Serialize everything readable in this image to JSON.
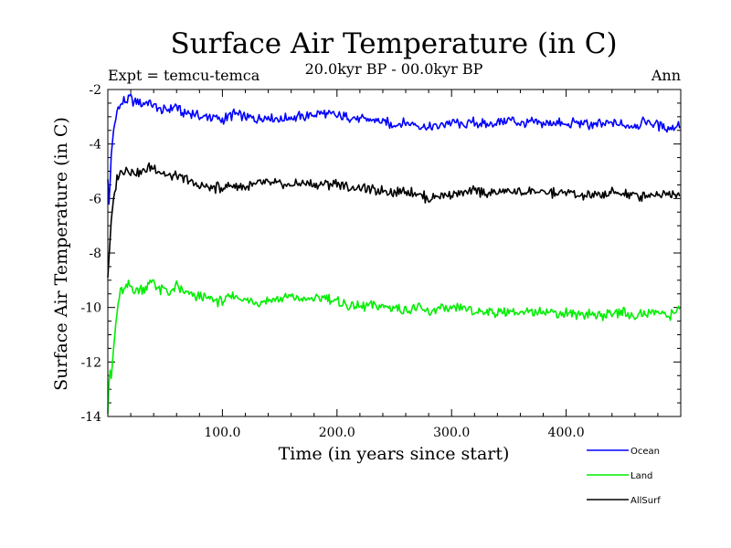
{
  "chart_data": {
    "type": "line",
    "title": "Surface Air Temperature (in C)",
    "subtitle": "20.0kyr BP - 00.0kyr BP",
    "experiment_label": "Expt = temcu-temca",
    "period_label": "Ann",
    "xlabel": "Time (in years since start)",
    "ylabel": "Surface Air Temperature (in C)",
    "xlim": [
      0,
      500
    ],
    "ylim": [
      -14,
      -2
    ],
    "x_ticks": [
      {
        "value": 100,
        "label": "100.0"
      },
      {
        "value": 200,
        "label": "200.0"
      },
      {
        "value": 300,
        "label": "300.0"
      },
      {
        "value": 400,
        "label": "400.0"
      }
    ],
    "y_ticks": [
      {
        "value": -2,
        "label": "-2"
      },
      {
        "value": -4,
        "label": "-4"
      },
      {
        "value": -6,
        "label": "-6"
      },
      {
        "value": -8,
        "label": "-8"
      },
      {
        "value": -10,
        "label": "-10"
      },
      {
        "value": -12,
        "label": "-12"
      },
      {
        "value": -14,
        "label": "-14"
      }
    ],
    "legend_position": "bottom-right",
    "series": [
      {
        "name": "Ocean",
        "color": "#0000ff",
        "x": [
          0,
          1,
          2,
          3,
          5,
          8,
          10,
          12,
          15,
          18,
          20,
          22,
          25,
          28,
          30,
          35,
          40,
          45,
          50,
          55,
          60,
          65,
          70,
          75,
          80,
          90,
          100,
          110,
          120,
          130,
          140,
          150,
          160,
          170,
          180,
          190,
          200,
          210,
          220,
          230,
          240,
          250,
          260,
          270,
          280,
          290,
          300,
          310,
          320,
          330,
          340,
          350,
          360,
          370,
          380,
          390,
          400,
          410,
          420,
          430,
          440,
          450,
          460,
          470,
          480,
          490,
          499
        ],
        "values": [
          -5.3,
          -6.2,
          -5.4,
          -4.4,
          -3.5,
          -2.8,
          -2.6,
          -2.5,
          -2.4,
          -2.4,
          -2.3,
          -2.5,
          -2.4,
          -2.5,
          -2.6,
          -2.4,
          -2.6,
          -2.7,
          -2.8,
          -2.7,
          -2.6,
          -2.9,
          -2.8,
          -2.9,
          -3.0,
          -3.0,
          -3.1,
          -2.9,
          -3.0,
          -3.1,
          -3.0,
          -3.1,
          -3.0,
          -3.0,
          -2.9,
          -2.9,
          -3.0,
          -3.0,
          -3.1,
          -3.1,
          -3.2,
          -3.3,
          -3.2,
          -3.3,
          -3.4,
          -3.3,
          -3.2,
          -3.3,
          -3.2,
          -3.3,
          -3.2,
          -3.1,
          -3.3,
          -3.2,
          -3.3,
          -3.2,
          -3.3,
          -3.2,
          -3.3,
          -3.3,
          -3.2,
          -3.3,
          -3.3,
          -3.2,
          -3.3,
          -3.4,
          -3.3
        ]
      },
      {
        "name": "Land",
        "color": "#00ee00",
        "x": [
          0,
          1,
          2,
          3,
          5,
          8,
          10,
          12,
          15,
          18,
          20,
          25,
          30,
          35,
          40,
          45,
          50,
          55,
          60,
          65,
          70,
          75,
          80,
          90,
          100,
          110,
          120,
          130,
          140,
          150,
          160,
          170,
          180,
          190,
          200,
          210,
          220,
          230,
          240,
          250,
          260,
          270,
          280,
          290,
          300,
          310,
          320,
          330,
          340,
          350,
          360,
          370,
          380,
          390,
          400,
          410,
          420,
          430,
          440,
          450,
          460,
          470,
          480,
          490,
          499
        ],
        "values": [
          -13.9,
          -12.8,
          -12.3,
          -12.6,
          -11.5,
          -10.2,
          -9.6,
          -9.4,
          -9.3,
          -9.2,
          -9.2,
          -9.4,
          -9.3,
          -9.2,
          -9.0,
          -9.4,
          -9.3,
          -9.5,
          -9.2,
          -9.4,
          -9.5,
          -9.6,
          -9.6,
          -9.7,
          -9.8,
          -9.6,
          -9.7,
          -9.8,
          -9.7,
          -9.7,
          -9.6,
          -9.7,
          -9.7,
          -9.6,
          -9.8,
          -9.9,
          -10.0,
          -9.9,
          -10.0,
          -10.0,
          -10.1,
          -10.0,
          -10.2,
          -10.0,
          -10.1,
          -10.0,
          -10.2,
          -10.1,
          -10.2,
          -10.1,
          -10.2,
          -10.2,
          -10.1,
          -10.2,
          -10.2,
          -10.3,
          -10.2,
          -10.3,
          -10.2,
          -10.2,
          -10.3,
          -10.2,
          -10.2,
          -10.3,
          -10.0
        ]
      },
      {
        "name": "AllSurf",
        "color": "#000000",
        "x": [
          0,
          1,
          2,
          3,
          5,
          8,
          10,
          12,
          15,
          18,
          20,
          25,
          30,
          35,
          40,
          45,
          50,
          55,
          60,
          65,
          70,
          75,
          80,
          90,
          100,
          110,
          120,
          130,
          140,
          150,
          160,
          170,
          180,
          190,
          200,
          210,
          220,
          230,
          240,
          250,
          260,
          270,
          280,
          290,
          300,
          310,
          320,
          330,
          340,
          350,
          360,
          370,
          380,
          390,
          400,
          410,
          420,
          430,
          440,
          450,
          460,
          470,
          480,
          490,
          499
        ],
        "values": [
          -8.9,
          -8.2,
          -7.5,
          -6.8,
          -6.0,
          -5.3,
          -5.1,
          -5.0,
          -4.9,
          -4.9,
          -5.0,
          -5.1,
          -5.0,
          -4.9,
          -4.8,
          -5.0,
          -5.1,
          -5.2,
          -5.2,
          -5.3,
          -5.3,
          -5.5,
          -5.5,
          -5.6,
          -5.6,
          -5.5,
          -5.6,
          -5.5,
          -5.4,
          -5.5,
          -5.5,
          -5.4,
          -5.5,
          -5.5,
          -5.4,
          -5.6,
          -5.6,
          -5.7,
          -5.7,
          -5.8,
          -5.7,
          -5.8,
          -6.0,
          -5.9,
          -5.8,
          -5.8,
          -5.7,
          -5.8,
          -5.8,
          -5.7,
          -5.8,
          -5.7,
          -5.8,
          -5.8,
          -5.8,
          -5.9,
          -5.9,
          -5.9,
          -5.8,
          -5.8,
          -5.9,
          -5.9,
          -5.8,
          -5.8,
          -5.8
        ]
      }
    ]
  }
}
